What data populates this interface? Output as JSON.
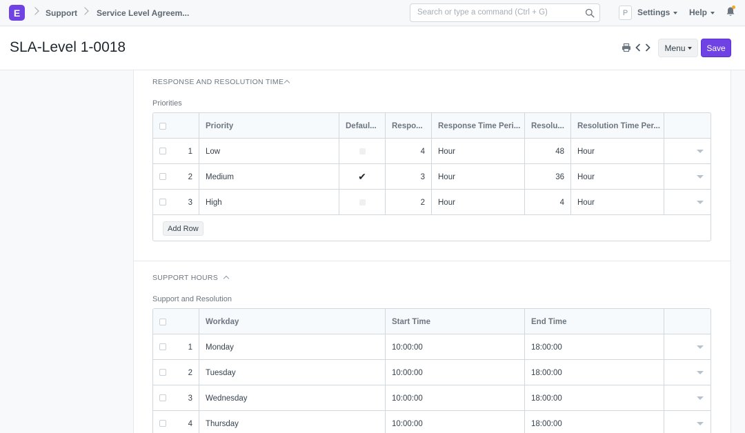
{
  "navbar": {
    "logo_letter": "E",
    "breadcrumbs": [
      "Support",
      "Service Level Agreem..."
    ],
    "search_placeholder": "Search or type a command (Ctrl + G)",
    "avatar_letter": "P",
    "settings_label": "Settings",
    "help_label": "Help",
    "notification_color": "#f5a623"
  },
  "page": {
    "title": "SLA-Level 1-0018",
    "menu_label": "Menu",
    "save_label": "Save",
    "accent_color": "#6f42e4"
  },
  "response_section": {
    "title": "RESPONSE AND RESOLUTION TIME",
    "field_label": "Priorities",
    "columns": [
      "Priority",
      "Defaul...",
      "Respo...",
      "Response Time Peri...",
      "Resolu...",
      "Resolution Time Per..."
    ],
    "rows": [
      {
        "idx": "1",
        "priority": "Low",
        "default": false,
        "response": "4",
        "response_period": "Hour",
        "resolution": "48",
        "resolution_period": "Hour"
      },
      {
        "idx": "2",
        "priority": "Medium",
        "default": true,
        "response": "3",
        "response_period": "Hour",
        "resolution": "36",
        "resolution_period": "Hour"
      },
      {
        "idx": "3",
        "priority": "High",
        "default": false,
        "response": "2",
        "response_period": "Hour",
        "resolution": "4",
        "resolution_period": "Hour"
      }
    ],
    "add_row_label": "Add Row"
  },
  "support_section": {
    "title": "SUPPORT HOURS",
    "field_label": "Support and Resolution",
    "columns": [
      "Workday",
      "Start Time",
      "End Time"
    ],
    "rows": [
      {
        "idx": "1",
        "workday": "Monday",
        "start": "10:00:00",
        "end": "18:00:00"
      },
      {
        "idx": "2",
        "workday": "Tuesday",
        "start": "10:00:00",
        "end": "18:00:00"
      },
      {
        "idx": "3",
        "workday": "Wednesday",
        "start": "10:00:00",
        "end": "18:00:00"
      },
      {
        "idx": "4",
        "workday": "Thursday",
        "start": "10:00:00",
        "end": "18:00:00"
      }
    ]
  }
}
